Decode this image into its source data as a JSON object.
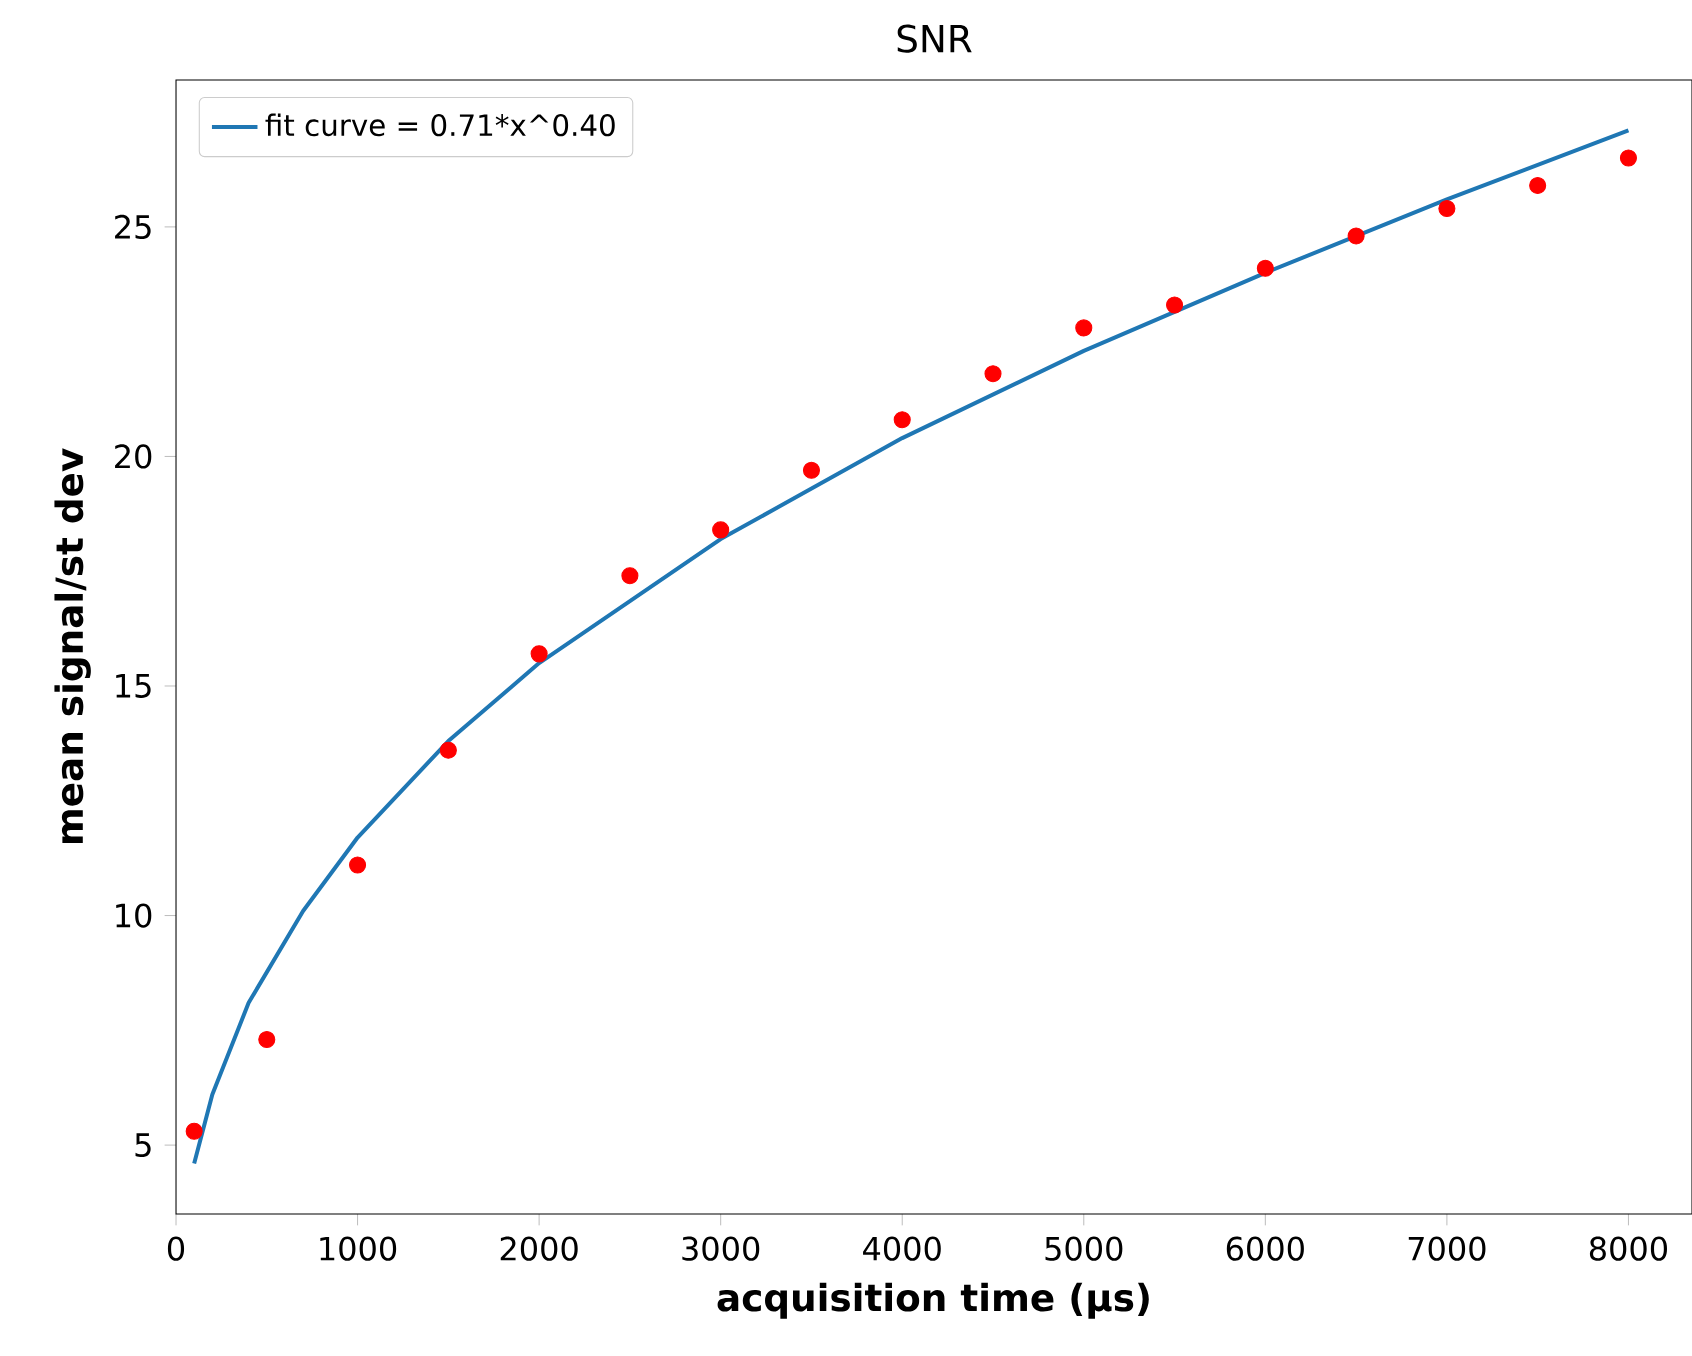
{
  "chart_data": {
    "type": "scatter",
    "title": "SNR",
    "xlabel": "acquisition time (μs)",
    "ylabel": "mean signal/st dev",
    "xlim": [
      0,
      8350
    ],
    "ylim": [
      3.5,
      28.2
    ],
    "xticks": [
      0,
      1000,
      2000,
      3000,
      4000,
      5000,
      6000,
      7000,
      8000
    ],
    "yticks": [
      5,
      10,
      15,
      20,
      25
    ],
    "legend": "top left",
    "grid": false,
    "series": [
      {
        "type": "line",
        "name": "fit curve = 0.71*x^0.40",
        "color": "#1f77b4",
        "marker": "none",
        "line_style": "solid",
        "x": [
          100,
          200,
          400,
          700,
          1000,
          1500,
          2000,
          3000,
          4000,
          5000,
          6000,
          7000,
          8000
        ],
        "values": [
          4.6,
          6.1,
          8.1,
          10.1,
          11.7,
          13.8,
          15.5,
          18.2,
          20.4,
          22.3,
          24.0,
          25.6,
          27.1
        ]
      },
      {
        "color": "#ff0000",
        "marker": "circle",
        "x": [
          100,
          500,
          1000,
          1500,
          2000,
          2500,
          3000,
          3500,
          4000,
          4500,
          5000,
          5500,
          6000,
          6500,
          7000,
          7500,
          8000
        ],
        "values": [
          5.3,
          7.3,
          11.1,
          13.6,
          15.7,
          17.4,
          18.4,
          19.7,
          20.8,
          21.8,
          22.8,
          23.3,
          24.1,
          24.8,
          25.4,
          25.9,
          26.5
        ]
      }
    ]
  }
}
